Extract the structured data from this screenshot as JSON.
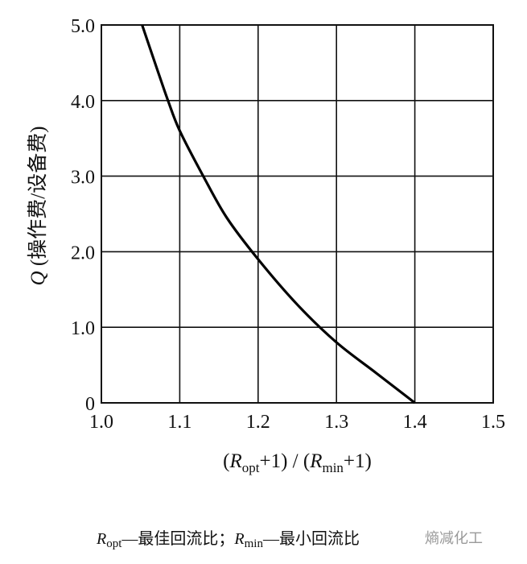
{
  "chart_data": {
    "type": "line",
    "xlabel": "(Ropt+1) / (Rmin+1)",
    "ylabel": "Q (操作费/设备费)",
    "xlim": [
      1.0,
      1.5
    ],
    "ylim": [
      0,
      5.0
    ],
    "grid": true,
    "x_ticks": [
      "1.0",
      "1.1",
      "1.2",
      "1.3",
      "1.4",
      "1.5"
    ],
    "y_ticks": [
      "0",
      "1.0",
      "2.0",
      "3.0",
      "4.0",
      "5.0"
    ],
    "series": [
      {
        "x": [
          1.052,
          1.07,
          1.085,
          1.1,
          1.13,
          1.16,
          1.2,
          1.25,
          1.3,
          1.35,
          1.4
        ],
        "y": [
          5.0,
          4.45,
          4.0,
          3.6,
          3.0,
          2.45,
          1.9,
          1.3,
          0.8,
          0.4,
          0.0
        ],
        "color": "#000000"
      }
    ]
  },
  "caption": {
    "r1": "R",
    "r1_sub": "opt",
    "r1_desc": "—最佳回流比；",
    "r2": "R",
    "r2_sub": "min",
    "r2_desc": "—最小回流比"
  },
  "watermark": "熵减化工"
}
